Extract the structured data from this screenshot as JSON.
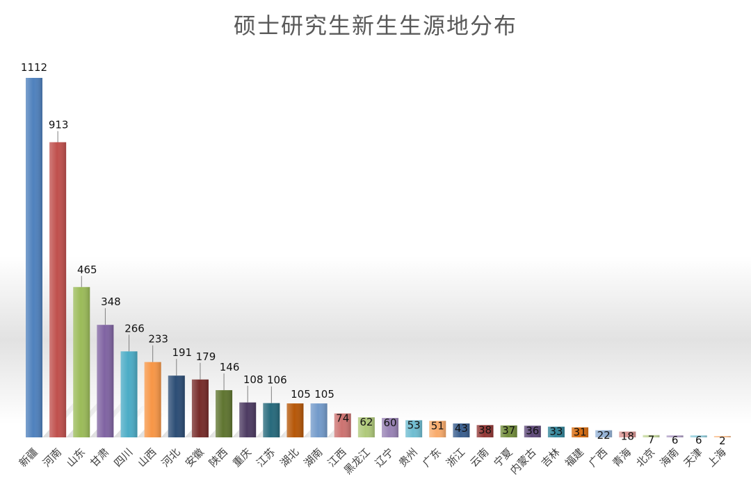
{
  "chart_data": {
    "type": "bar",
    "title": "硕士研究生新生生源地分布",
    "xlabel": "",
    "ylabel": "",
    "ylim": [
      0,
      1112
    ],
    "grid": false,
    "legend": "none",
    "categories": [
      "新疆",
      "河南",
      "山东",
      "甘肃",
      "四川",
      "山西",
      "河北",
      "安徽",
      "陕西",
      "重庆",
      "江苏",
      "湖北",
      "湖南",
      "江西",
      "黑龙江",
      "辽宁",
      "贵州",
      "广东",
      "浙江",
      "云南",
      "宁夏",
      "内蒙古",
      "吉林",
      "福建",
      "广西",
      "青海",
      "北京",
      "海南",
      "天津",
      "上海"
    ],
    "values": [
      1112,
      913,
      465,
      348,
      266,
      233,
      191,
      179,
      146,
      108,
      106,
      105,
      105,
      74,
      62,
      60,
      53,
      51,
      43,
      38,
      37,
      36,
      33,
      31,
      22,
      18,
      7,
      6,
      6,
      2
    ],
    "colors": [
      "#4F81BD",
      "#C0504D",
      "#9BBB59",
      "#8064A2",
      "#4BACC6",
      "#F79646",
      "#2C4D75",
      "#772C2A",
      "#5F7530",
      "#4D3B62",
      "#276A7C",
      "#B65708",
      "#729ACA",
      "#CD7371",
      "#AFC97A",
      "#9983B5",
      "#6FBDD1",
      "#F9AB6B",
      "#3A5F8F",
      "#923735",
      "#738E3C",
      "#5F4A7A",
      "#32859A",
      "#DA6D0F",
      "#95B3D7",
      "#DA9694",
      "#C4D79B",
      "#B1A0C7",
      "#92CDDC",
      "#FABF8F"
    ]
  }
}
